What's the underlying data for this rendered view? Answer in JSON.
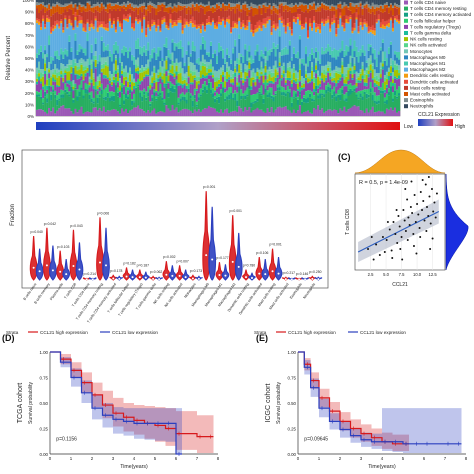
{
  "panels": {
    "b": "(B)",
    "c": "(C)",
    "d": "(D)",
    "e": "(E)"
  },
  "colors": {
    "high": "#d7191c",
    "low": "#2b3fbf",
    "ci_line": "#3060c0",
    "density": "#f5a623"
  },
  "chart_data": [
    {
      "id": "A",
      "type": "bar",
      "stacked": true,
      "ylabel": "Relative Percent",
      "yticks": [
        "0%",
        "10%",
        "20%",
        "30%",
        "40%",
        "50%",
        "60%",
        "70%",
        "80%",
        "90%",
        "100%"
      ],
      "legend": {
        "placement": "right",
        "items": [
          "T cells CD4 naive",
          "T cells CD4 memory resting",
          "T cells CD4 memory activated",
          "T cells follicular helper",
          "T cells regulatory (Tregs)",
          "T cells gamma delta",
          "NK cells resting",
          "NK cells activated",
          "Monocytes",
          "Macrophages M0",
          "Macrophages M1",
          "Macrophages M2",
          "Dendritic cells resting",
          "Dendritic cells activated",
          "Mast cells resting",
          "Mast cells activated",
          "Eosinophils",
          "Neutrophils"
        ],
        "colors": [
          "#9b59b6",
          "#27ae60",
          "#16a085",
          "#2ecc71",
          "#8e44ad",
          "#1abc9c",
          "#a3c400",
          "#58d68d",
          "#73c6b6",
          "#2e86c1",
          "#48c9b0",
          "#5dade2",
          "#f39c12",
          "#e74c3c",
          "#c0392b",
          "#d35400",
          "#7f8c8d",
          "#34495e"
        ]
      },
      "expression_bar": {
        "title": "CCL21 Expression",
        "low": "Low",
        "high": "High"
      }
    },
    {
      "id": "B",
      "type": "violin",
      "ylabel": "Fraction",
      "categories": [
        "B cells naive",
        "B cells memory",
        "Plasma cells",
        "T cells CD8",
        "T cells CD4 naive",
        "T cells CD4 memory resting",
        "T cells CD4 memory activated",
        "T cells follicular helper",
        "T cells regulatory (Tregs)",
        "T cells gamma delta",
        "NK cells resting",
        "NK cells activated",
        "Monocytes",
        "Macrophages M0",
        "Macrophages M1",
        "Macrophages M2",
        "Dendritic cells resting",
        "Dendritic cells activated",
        "Mast cells resting",
        "Mast cells activated",
        "Eosinophils",
        "Neutrophils"
      ],
      "pvalues": [
        "p=0.040",
        "p=0.042",
        "p=0.103",
        "p=0.043",
        "p=0.214",
        "p=0.006",
        "p=0.178",
        "p=0.182",
        "p=0.187",
        "p=0.062",
        "p=0.002",
        "p=0.007",
        "p=0.173",
        "p=0.001",
        "p=0.177",
        "p=0.001",
        "p=0.780",
        "p=0.106",
        "p=0.001",
        "p=0.217",
        "p=0.146",
        "p=0.250"
      ],
      "high_max": [
        0.42,
        0.5,
        0.28,
        0.48,
        0.02,
        0.6,
        0.05,
        0.12,
        0.1,
        0.04,
        0.18,
        0.14,
        0.05,
        0.85,
        0.17,
        0.62,
        0.1,
        0.22,
        0.3,
        0.03,
        0.02,
        0.04
      ],
      "low_max": [
        0.3,
        0.33,
        0.2,
        0.36,
        0.02,
        0.5,
        0.04,
        0.1,
        0.08,
        0.03,
        0.14,
        0.1,
        0.04,
        0.7,
        0.15,
        0.45,
        0.07,
        0.2,
        0.22,
        0.02,
        0.02,
        0.03
      ]
    },
    {
      "id": "C",
      "type": "scatter",
      "annotation": "R = 0.5, p = 1.4e-09",
      "xlabel": "CCL21",
      "ylabel": "T cells CD8",
      "xticks": [
        "2.5",
        "5.0",
        "7.5",
        "10.0",
        "12.5"
      ],
      "xlim": [
        0,
        14.5
      ],
      "ylim": [
        -0.02,
        0.62
      ],
      "fit": {
        "x": [
          0.5,
          13.5
        ],
        "y": [
          0.1,
          0.37
        ]
      },
      "points": [
        [
          2.1,
          0.12
        ],
        [
          3.4,
          0.15
        ],
        [
          4.0,
          0.08
        ],
        [
          4.5,
          0.2
        ],
        [
          5.1,
          0.18
        ],
        [
          5.6,
          0.25
        ],
        [
          5.9,
          0.11
        ],
        [
          6.2,
          0.3
        ],
        [
          6.5,
          0.22
        ],
        [
          6.8,
          0.16
        ],
        [
          7.0,
          0.34
        ],
        [
          7.2,
          0.27
        ],
        [
          7.5,
          0.2
        ],
        [
          7.8,
          0.38
        ],
        [
          8.0,
          0.31
        ],
        [
          8.2,
          0.24
        ],
        [
          8.4,
          0.45
        ],
        [
          8.6,
          0.33
        ],
        [
          8.8,
          0.28
        ],
        [
          9.0,
          0.4
        ],
        [
          9.2,
          0.36
        ],
        [
          9.4,
          0.22
        ],
        [
          9.6,
          0.48
        ],
        [
          9.8,
          0.3
        ],
        [
          10.0,
          0.42
        ],
        [
          10.2,
          0.35
        ],
        [
          10.4,
          0.26
        ],
        [
          10.6,
          0.5
        ],
        [
          10.8,
          0.38
        ],
        [
          11.0,
          0.44
        ],
        [
          11.2,
          0.31
        ],
        [
          11.4,
          0.55
        ],
        [
          11.6,
          0.4
        ],
        [
          11.8,
          0.34
        ],
        [
          12.0,
          0.47
        ],
        [
          12.2,
          0.29
        ],
        [
          12.4,
          0.52
        ],
        [
          12.6,
          0.37
        ],
        [
          12.8,
          0.43
        ],
        [
          13.0,
          0.33
        ],
        [
          3.0,
          0.05
        ],
        [
          4.8,
          0.1
        ],
        [
          6.0,
          0.06
        ],
        [
          7.3,
          0.12
        ],
        [
          8.5,
          0.18
        ],
        [
          9.5,
          0.14
        ],
        [
          10.5,
          0.2
        ],
        [
          11.5,
          0.24
        ],
        [
          12.5,
          0.19
        ],
        [
          2.7,
          0.2
        ],
        [
          5.3,
          0.3
        ],
        [
          6.7,
          0.38
        ],
        [
          8.1,
          0.52
        ],
        [
          9.1,
          0.57
        ],
        [
          10.9,
          0.58
        ],
        [
          11.9,
          0.6
        ],
        [
          13.2,
          0.49
        ],
        [
          7.6,
          0.05
        ],
        [
          9.9,
          0.09
        ],
        [
          12.1,
          0.12
        ]
      ]
    },
    {
      "id": "D",
      "type": "line",
      "cohort": "TCGA cohort",
      "ylabel": "Survival probability",
      "xlabel": "Time(years)",
      "xticks": [
        "0",
        "1",
        "2",
        "3",
        "4",
        "5",
        "6",
        "7",
        "8"
      ],
      "yticks": [
        "0.00",
        "0.25",
        "0.50",
        "0.75",
        "1.00"
      ],
      "legend_title": "Strata",
      "series": [
        {
          "name": "CCL21 high expression",
          "x": [
            0,
            0.5,
            1,
            1.5,
            2,
            2.5,
            3,
            3.5,
            4,
            4.5,
            5,
            5.5,
            6,
            7,
            7.5
          ],
          "y": [
            1,
            0.93,
            0.82,
            0.7,
            0.58,
            0.48,
            0.4,
            0.36,
            0.33,
            0.3,
            0.28,
            0.25,
            0.2,
            0.17,
            0.17
          ],
          "lo": [
            1,
            0.88,
            0.75,
            0.6,
            0.46,
            0.35,
            0.27,
            0.22,
            0.19,
            0.15,
            0.12,
            0.08,
            0.04,
            0.01,
            0.01
          ],
          "hi": [
            1,
            0.98,
            0.9,
            0.8,
            0.7,
            0.62,
            0.55,
            0.5,
            0.48,
            0.47,
            0.46,
            0.45,
            0.42,
            0.38,
            0.38
          ]
        },
        {
          "name": "CCL21 low expression",
          "x": [
            0,
            0.5,
            1,
            1.5,
            2,
            2.5,
            3,
            3.5,
            4,
            4.5,
            5,
            5.5,
            6
          ],
          "y": [
            1,
            0.9,
            0.75,
            0.6,
            0.45,
            0.38,
            0.34,
            0.32,
            0.3,
            0.3,
            0.3,
            0.3,
            0.0
          ],
          "lo": [
            1,
            0.85,
            0.66,
            0.5,
            0.34,
            0.26,
            0.2,
            0.18,
            0.15,
            0.14,
            0.13,
            0.12,
            0.0
          ],
          "hi": [
            1,
            0.95,
            0.84,
            0.72,
            0.58,
            0.5,
            0.46,
            0.45,
            0.45,
            0.45,
            0.45,
            0.45,
            0.45
          ]
        }
      ],
      "pvalue": "p=0.1156"
    },
    {
      "id": "E",
      "type": "line",
      "cohort": "ICGC cohort",
      "ylabel": "Survival probability",
      "xlabel": "Time(years)",
      "xticks": [
        "0",
        "1",
        "2",
        "3",
        "4",
        "5",
        "6",
        "7",
        "8"
      ],
      "yticks": [
        "0.00",
        "0.25",
        "0.50",
        "0.75",
        "1.00"
      ],
      "legend_title": "Strata",
      "series": [
        {
          "name": "CCL21 high expression",
          "x": [
            0,
            0.3,
            0.6,
            1,
            1.5,
            2,
            2.5,
            3,
            3.5,
            4,
            4.5,
            5
          ],
          "y": [
            1,
            0.88,
            0.72,
            0.55,
            0.42,
            0.32,
            0.25,
            0.2,
            0.16,
            0.12,
            0.1,
            0.1
          ],
          "lo": [
            1,
            0.82,
            0.64,
            0.46,
            0.33,
            0.23,
            0.16,
            0.12,
            0.08,
            0.05,
            0.03,
            0.03
          ],
          "hi": [
            1,
            0.94,
            0.8,
            0.64,
            0.51,
            0.41,
            0.34,
            0.29,
            0.25,
            0.21,
            0.19,
            0.19
          ]
        },
        {
          "name": "CCL21 low expression",
          "x": [
            0,
            0.3,
            0.6,
            1,
            1.5,
            2,
            2.5,
            3,
            3.5,
            4,
            4.5,
            5,
            5.5,
            6,
            7,
            7.5
          ],
          "y": [
            1,
            0.85,
            0.65,
            0.45,
            0.32,
            0.24,
            0.18,
            0.14,
            0.12,
            0.12,
            0.12,
            0.1,
            0.1,
            0.1,
            0.1,
            0.1
          ],
          "lo": [
            1,
            0.78,
            0.56,
            0.36,
            0.24,
            0.16,
            0.11,
            0.07,
            0.05,
            0.03,
            0.02,
            0.01,
            0.01,
            0.01,
            0.01,
            0.01
          ],
          "hi": [
            1,
            0.92,
            0.74,
            0.54,
            0.4,
            0.32,
            0.25,
            0.21,
            0.2,
            0.45,
            0.45,
            0.45,
            0.45,
            0.45,
            0.45,
            0.45
          ]
        }
      ],
      "pvalue": "p=0.09645"
    }
  ]
}
